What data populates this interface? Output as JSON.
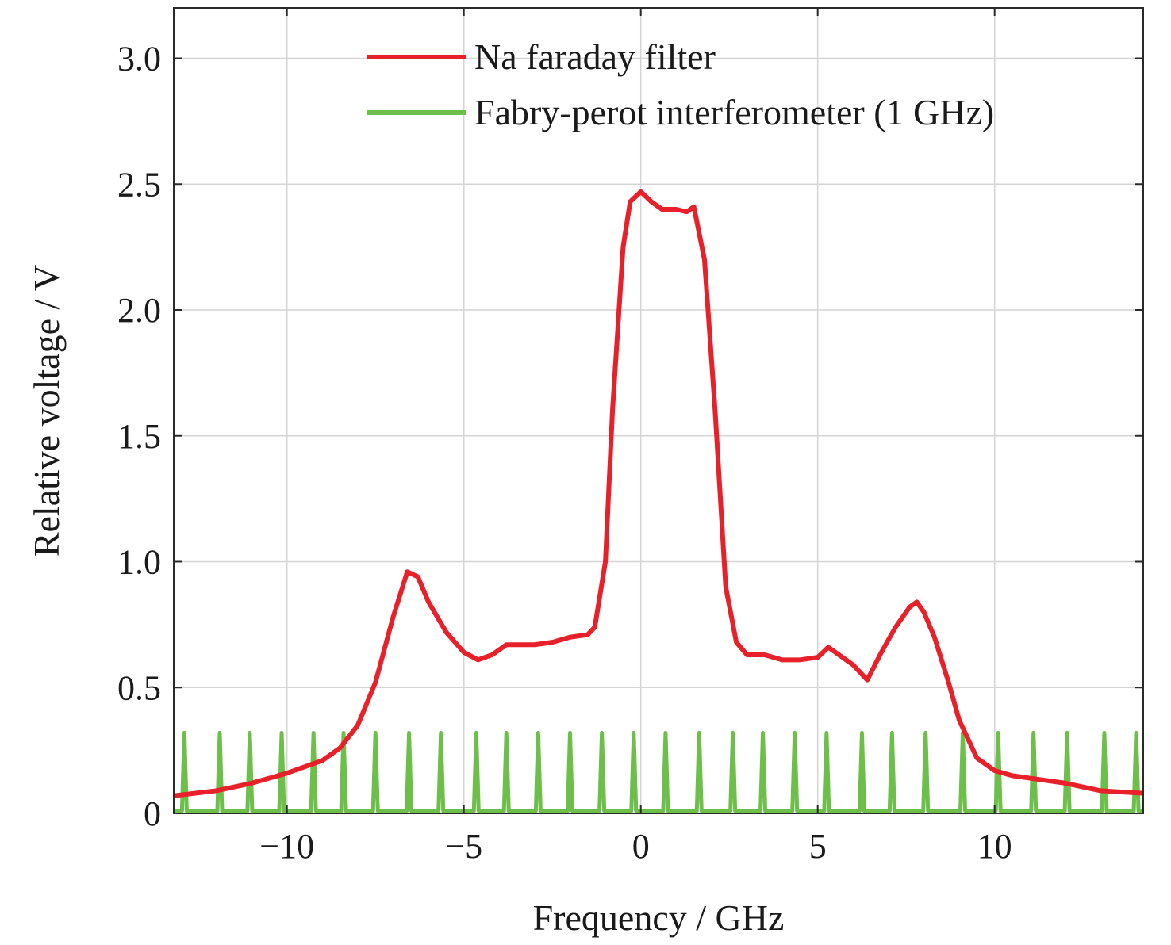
{
  "chart_data": {
    "type": "line",
    "title": "",
    "xlabel": "Frequency / GHz",
    "ylabel": "Relative voltage / V",
    "xlim": [
      -13.2,
      14.2
    ],
    "ylim": [
      0,
      3.2
    ],
    "x_ticks": [
      -10,
      -5,
      0,
      5,
      10
    ],
    "x_tick_labels": [
      "−10",
      "−5",
      "0",
      "5",
      "10"
    ],
    "y_ticks": [
      0,
      0.5,
      1.0,
      1.5,
      2.0,
      2.5,
      3.0
    ],
    "y_tick_labels": [
      "0",
      "0.5",
      "1.0",
      "1.5",
      "2.0",
      "2.5",
      "3.0"
    ],
    "grid": true,
    "legend_position": "top-right",
    "series": [
      {
        "name": "Na faraday filter",
        "color": "#e8202a",
        "x": [
          -13.2,
          -12.0,
          -11.0,
          -10.0,
          -9.0,
          -8.5,
          -8.0,
          -7.5,
          -7.0,
          -6.6,
          -6.3,
          -6.0,
          -5.5,
          -5.0,
          -4.6,
          -4.2,
          -3.8,
          -3.4,
          -3.0,
          -2.5,
          -2.0,
          -1.5,
          -1.3,
          -1.0,
          -0.8,
          -0.5,
          -0.3,
          0.0,
          0.3,
          0.6,
          1.0,
          1.3,
          1.5,
          1.8,
          2.1,
          2.4,
          2.7,
          3.0,
          3.5,
          4.0,
          4.5,
          5.0,
          5.3,
          5.6,
          6.0,
          6.4,
          6.8,
          7.2,
          7.6,
          7.8,
          8.0,
          8.3,
          8.7,
          9.0,
          9.5,
          10.0,
          10.5,
          11.0,
          12.0,
          13.0,
          14.2
        ],
        "y": [
          0.07,
          0.09,
          0.12,
          0.16,
          0.21,
          0.26,
          0.35,
          0.52,
          0.78,
          0.96,
          0.94,
          0.84,
          0.72,
          0.64,
          0.61,
          0.63,
          0.67,
          0.67,
          0.67,
          0.68,
          0.7,
          0.71,
          0.74,
          1.0,
          1.6,
          2.25,
          2.43,
          2.47,
          2.43,
          2.4,
          2.4,
          2.39,
          2.41,
          2.2,
          1.6,
          0.9,
          0.68,
          0.63,
          0.63,
          0.61,
          0.61,
          0.62,
          0.66,
          0.63,
          0.59,
          0.53,
          0.64,
          0.74,
          0.82,
          0.84,
          0.8,
          0.7,
          0.52,
          0.37,
          0.22,
          0.17,
          0.15,
          0.14,
          0.12,
          0.09,
          0.08
        ]
      },
      {
        "name": "Fabry-perot interferometer (1 GHz)",
        "color": "#6cc04a",
        "baseline": 0.01,
        "peak_height": 0.32,
        "peak_positions": [
          -12.9,
          -11.9,
          -11.05,
          -10.15,
          -9.25,
          -8.4,
          -7.5,
          -6.55,
          -5.65,
          -4.65,
          -3.8,
          -2.9,
          -2.0,
          -1.1,
          -0.2,
          0.7,
          1.65,
          2.6,
          3.45,
          4.35,
          5.25,
          6.25,
          7.1,
          8.05,
          9.1,
          10.1,
          11.1,
          12.05,
          13.1,
          14.0
        ]
      }
    ]
  }
}
